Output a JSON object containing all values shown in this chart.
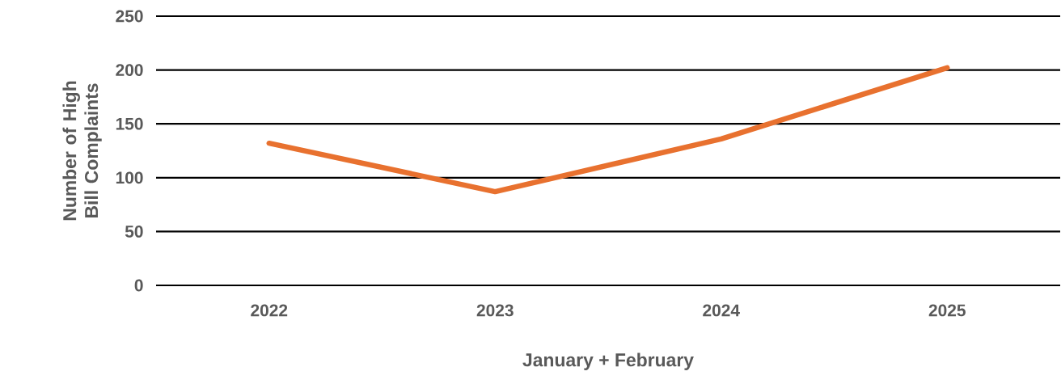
{
  "chart_data": {
    "type": "line",
    "xlabel": "January + February",
    "ylabel": "Number of High Bill Complaints",
    "categories": [
      "2022",
      "2023",
      "2024",
      "2025"
    ],
    "series": [
      {
        "color": "#e8712f",
        "values": [
          132,
          87,
          136,
          202
        ]
      }
    ],
    "ylim": [
      0,
      250
    ],
    "yticks": [
      0,
      50,
      100,
      150,
      200,
      250
    ],
    "grid": "y"
  }
}
